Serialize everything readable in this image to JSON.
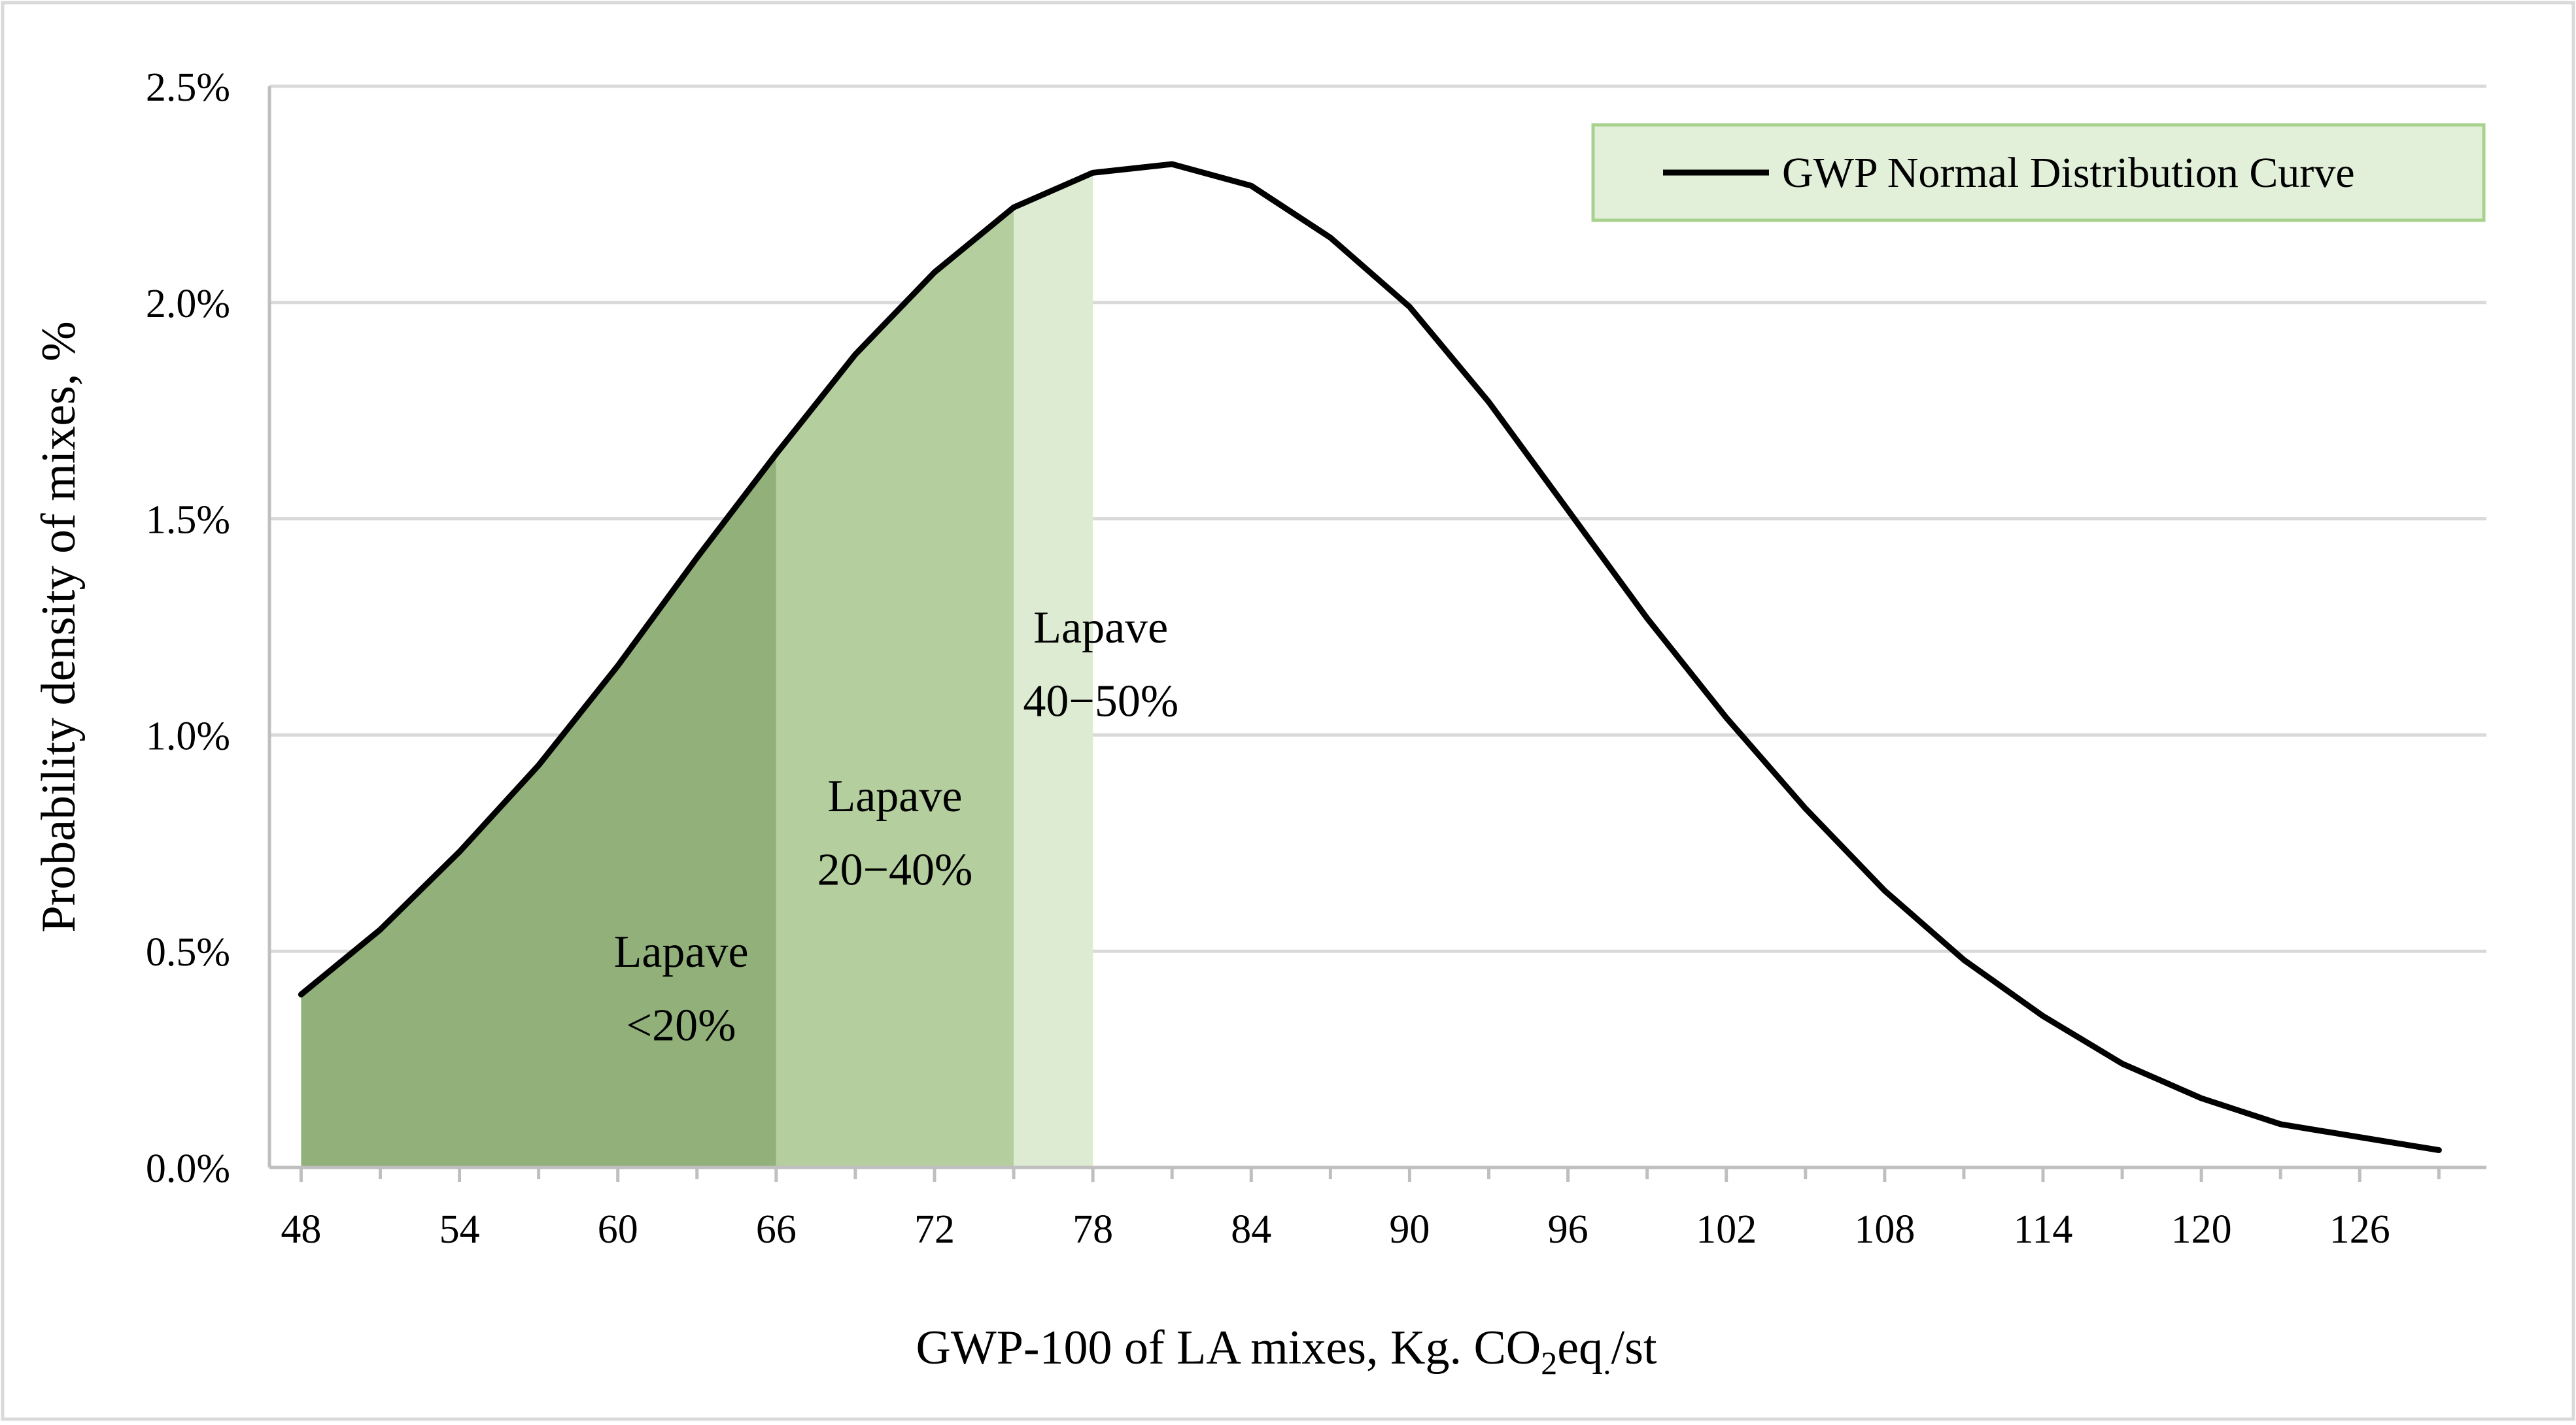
{
  "chart_data": {
    "type": "area",
    "title": "",
    "xlabel": "GWP-100 of LA mixes, Kg. CO2eq./st",
    "xlabel_parts": {
      "main": "GWP-100 of LA mixes, Kg. CO",
      "subscript": "2",
      "rest": "eq",
      "subdot": ".",
      "end": "/st"
    },
    "ylabel": "Probability density of mixes, %",
    "xlim": [
      46.8,
      130.8
    ],
    "ylim": [
      0,
      2.5
    ],
    "x_ticks": [
      48,
      54,
      60,
      66,
      72,
      78,
      84,
      90,
      96,
      102,
      108,
      114,
      120,
      126
    ],
    "y_ticks": [
      0.0,
      0.5,
      1.0,
      1.5,
      2.0,
      2.5
    ],
    "y_tick_labels": [
      "0.0%",
      "0.5%",
      "1.0%",
      "1.5%",
      "2.0%",
      "2.5%"
    ],
    "grid": true,
    "legend": {
      "position": "top-right",
      "label": "GWP Normal Distribution Curve"
    },
    "series": [
      {
        "name": "GWP Normal Distribution Curve",
        "x": [
          48,
          51,
          54,
          57,
          60,
          63,
          66,
          69,
          72,
          75,
          78,
          81,
          84,
          87,
          90,
          93,
          96,
          99,
          102,
          105,
          108,
          111,
          114,
          117,
          120,
          123,
          126,
          129
        ],
        "y": [
          0.4,
          0.55,
          0.73,
          0.93,
          1.16,
          1.41,
          1.65,
          1.88,
          2.07,
          2.22,
          2.3,
          2.32,
          2.27,
          2.15,
          1.99,
          1.77,
          1.52,
          1.27,
          1.04,
          0.83,
          0.64,
          0.48,
          0.35,
          0.24,
          0.16,
          0.1,
          0.07,
          0.04
        ]
      }
    ],
    "regions": [
      {
        "name": "Lapave <20%",
        "x_start": 48,
        "x_end": 66,
        "color": "#91b07a",
        "label_lines": [
          "Lapave",
          "<20%"
        ],
        "label_x": 62.4,
        "label_y": [
          0.5,
          0.33
        ]
      },
      {
        "name": "Lapave 20-40%",
        "x_start": 66,
        "x_end": 75,
        "color": "#b4ce9e",
        "label_lines": [
          "Lapave",
          "20−40%"
        ],
        "label_x": 70.5,
        "label_y": [
          0.86,
          0.69
        ]
      },
      {
        "name": "Lapave 40-50%",
        "x_start": 75,
        "x_end": 78,
        "color": "#ddebd2",
        "label_lines": [
          "Lapave",
          "40−50%"
        ],
        "label_x": 78.3,
        "label_y": [
          1.25,
          1.08
        ]
      }
    ],
    "colors": {
      "line": "#000000",
      "grid": "#d9d9d9",
      "axis": "#bfbfbf",
      "legend_fill": "#e2efd9",
      "legend_border": "#a9d18e"
    }
  }
}
